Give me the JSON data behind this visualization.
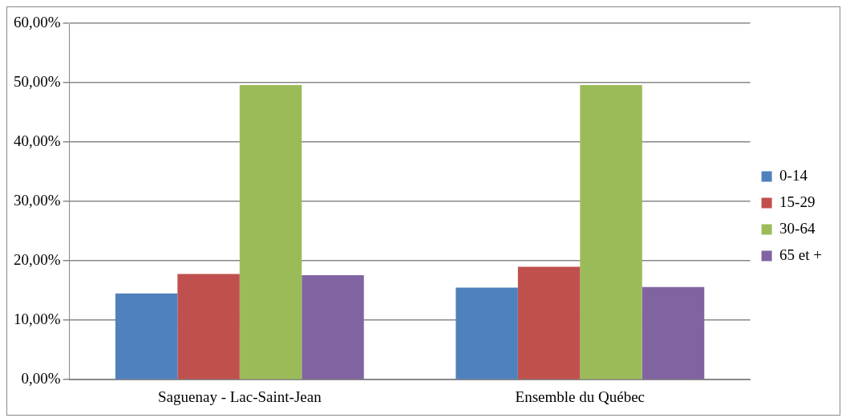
{
  "chart_data": {
    "type": "bar",
    "categories": [
      "Saguenay - Lac-Saint-Jean",
      "Ensemble du Québec"
    ],
    "series": [
      {
        "name": "0-14",
        "color": "#4f81bd",
        "values": [
          14.5,
          15.5
        ]
      },
      {
        "name": "15-29",
        "color": "#c0504d",
        "values": [
          17.8,
          19.0
        ]
      },
      {
        "name": "30-64",
        "color": "#9bbb59",
        "values": [
          49.6,
          49.6
        ]
      },
      {
        "name": "65 et +",
        "color": "#8064a2",
        "values": [
          17.6,
          15.6
        ]
      }
    ],
    "ylim": [
      0,
      60
    ],
    "yticks": [
      {
        "value": 0,
        "label": "0,00%"
      },
      {
        "value": 10,
        "label": "10,00%"
      },
      {
        "value": 20,
        "label": "20,00%"
      },
      {
        "value": 30,
        "label": "30,00%"
      },
      {
        "value": 40,
        "label": "40,00%"
      },
      {
        "value": 50,
        "label": "50,00%"
      },
      {
        "value": 60,
        "label": "60,00%"
      }
    ],
    "grid": "y",
    "legend": "right"
  }
}
